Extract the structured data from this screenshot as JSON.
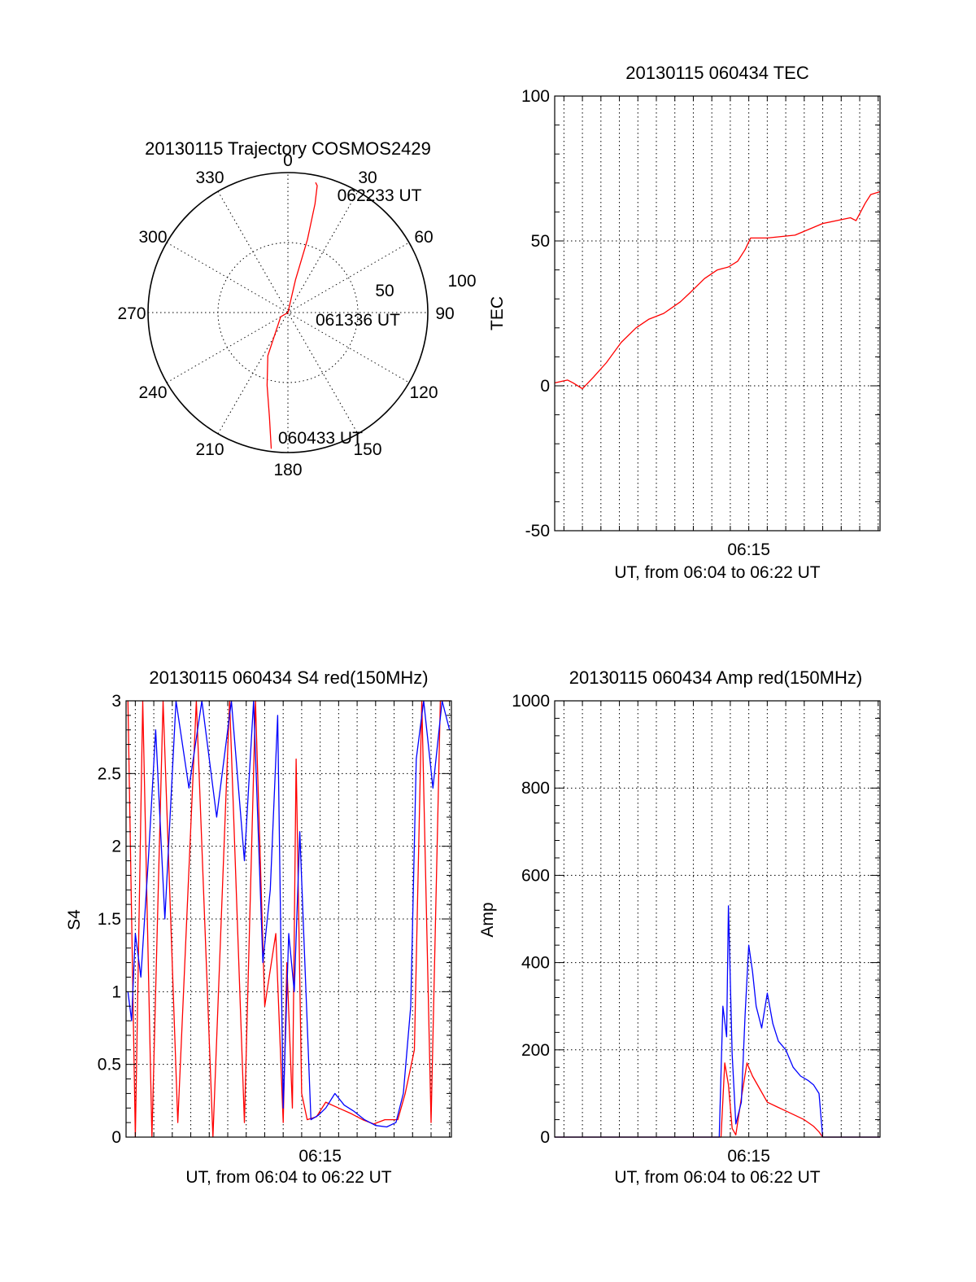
{
  "chart_data": [
    {
      "type": "polar",
      "title": "20130115 Trajectory COSMOS2429",
      "azimuth_labels": [
        "0",
        "30",
        "60",
        "90",
        "120",
        "150",
        "180",
        "210",
        "240",
        "270",
        "300",
        "330"
      ],
      "radius_labels": [
        "50",
        "100"
      ],
      "rlim": [
        0,
        100
      ],
      "trajectory_labels": [
        {
          "text": "062233 UT",
          "az": 22,
          "r": 91
        },
        {
          "text": "061336 UT",
          "az": 0,
          "r": 0
        },
        {
          "text": "060433 UT",
          "az": 180,
          "r": 97
        }
      ],
      "series": [
        {
          "color": "#ff0000",
          "points": [
            [
              187,
              98
            ],
            [
              190,
              76
            ],
            [
              196,
              54
            ],
            [
              205,
              34
            ],
            [
              240,
              6
            ],
            [
              0,
              0
            ],
            [
              13,
              24
            ],
            [
              15,
              54
            ],
            [
              14,
              80
            ],
            [
              13,
              93
            ],
            [
              12,
              95
            ]
          ]
        }
      ]
    },
    {
      "type": "line",
      "title": "20130115 060434 TEC",
      "xlabel": "UT, from 06:04 to 06:22 UT",
      "ylabel": "TEC",
      "xticklabels": [
        {
          "x": 15,
          "label": "06:15"
        }
      ],
      "xlim": [
        4.5,
        22.1
      ],
      "ylim": [
        -50,
        100
      ],
      "yticks": [
        -50,
        0,
        50,
        100
      ],
      "grid": true,
      "series": [
        {
          "color": "#ff0000",
          "x": [
            4.5,
            5.2,
            5.5,
            6.0,
            6.6,
            7.3,
            8.1,
            8.9,
            9.6,
            10.4,
            11.3,
            11.8,
            12.6,
            13.3,
            13.9,
            14.4,
            14.8,
            15.1,
            16.0,
            17.5,
            19.0,
            20.5,
            20.8,
            21.3,
            21.6,
            22.1
          ],
          "y": [
            1,
            2,
            1,
            -1,
            3,
            8,
            15,
            20,
            23,
            25,
            29,
            32,
            37,
            40,
            41,
            43,
            47,
            51,
            51,
            52,
            56,
            58,
            57,
            63,
            66,
            67
          ]
        }
      ]
    },
    {
      "type": "line",
      "title": "20130115 060434 S4 red(150MHz)",
      "xlabel": "UT, from 06:04 to 06:22 UT",
      "ylabel": "S4",
      "xticklabels": [
        {
          "x": 15,
          "label": "06:15"
        }
      ],
      "xlim": [
        4.5,
        22.1
      ],
      "ylim": [
        0,
        3
      ],
      "yticks": [
        0,
        0.5,
        1,
        1.5,
        2,
        2.5,
        3
      ],
      "ytick_labels": [
        "0",
        "0.5",
        "1",
        "1.5",
        "2",
        "2.5",
        "3"
      ],
      "grid": true,
      "series": [
        {
          "color": "#ff0000",
          "x": [
            4.6,
            5.0,
            5.4,
            5.9,
            6.5,
            7.3,
            8.3,
            9.2,
            10.1,
            10.9,
            11.5,
            12.0,
            12.6,
            13.0,
            13.2,
            13.5,
            13.7,
            14.0,
            14.3,
            14.8,
            15.3,
            16.0,
            16.7,
            17.3,
            17.9,
            18.5,
            19.2,
            19.6,
            20.1,
            20.5,
            21.0,
            21.5,
            22.0
          ],
          "y": [
            3,
            0,
            3,
            0,
            3,
            0.1,
            3,
            0,
            3,
            0.1,
            3,
            0.9,
            1.4,
            0.1,
            1.2,
            0.2,
            2.6,
            0.3,
            0.12,
            0.14,
            0.24,
            0.2,
            0.16,
            0.12,
            0.09,
            0.12,
            0.12,
            0.3,
            0.6,
            3,
            0.1,
            3,
            3
          ]
        },
        {
          "color": "#0000ff",
          "x": [
            4.6,
            4.8,
            5.0,
            5.3,
            5.7,
            6.1,
            6.6,
            7.2,
            7.9,
            8.6,
            9.4,
            10.2,
            10.9,
            11.4,
            11.9,
            12.3,
            12.7,
            13.0,
            13.3,
            13.6,
            13.9,
            14.2,
            14.5,
            14.9,
            15.3,
            15.8,
            16.3,
            16.8,
            17.4,
            18.0,
            18.6,
            19.1,
            19.5,
            19.9,
            20.2,
            20.6,
            21.1,
            21.6,
            22.0
          ],
          "y": [
            1.0,
            0.8,
            1.4,
            1.1,
            1.9,
            2.8,
            1.5,
            3,
            2.4,
            3,
            2.2,
            3,
            1.9,
            3,
            1.2,
            1.7,
            2.9,
            0.2,
            1.4,
            1.0,
            2.1,
            1.1,
            0.12,
            0.15,
            0.2,
            0.3,
            0.22,
            0.18,
            0.12,
            0.08,
            0.07,
            0.1,
            0.3,
            0.9,
            2.6,
            3,
            2.4,
            3,
            2.8
          ]
        }
      ]
    },
    {
      "type": "line",
      "title": "20130115 060434 Amp red(150MHz)",
      "xlabel": "UT, from 06:04 to 06:22 UT",
      "ylabel": "Amp",
      "xticklabels": [
        {
          "x": 15,
          "label": "06:15"
        }
      ],
      "xlim": [
        4.5,
        22.1
      ],
      "ylim": [
        0,
        1000
      ],
      "yticks": [
        0,
        200,
        400,
        600,
        800,
        1000
      ],
      "grid": true,
      "series": [
        {
          "color": "#ff0000",
          "x": [
            4.5,
            13.5,
            13.7,
            13.9,
            14.1,
            14.3,
            14.6,
            14.9,
            15.2,
            15.6,
            16.0,
            16.5,
            17.0,
            17.5,
            18.0,
            18.5,
            18.8,
            19.0,
            22.1
          ],
          "y": [
            0,
            0,
            170,
            120,
            20,
            5,
            90,
            170,
            140,
            110,
            80,
            70,
            60,
            50,
            40,
            25,
            12,
            0,
            0
          ]
        },
        {
          "color": "#0000ff",
          "x": [
            4.5,
            13.4,
            13.6,
            13.8,
            13.9,
            14.1,
            14.3,
            14.6,
            14.8,
            15.0,
            15.2,
            15.4,
            15.7,
            16.0,
            16.3,
            16.6,
            17.0,
            17.4,
            17.8,
            18.2,
            18.5,
            18.8,
            19.0,
            22.1
          ],
          "y": [
            0,
            0,
            300,
            230,
            530,
            190,
            30,
            80,
            280,
            440,
            380,
            300,
            250,
            330,
            260,
            220,
            200,
            160,
            140,
            130,
            120,
            100,
            0,
            0
          ]
        }
      ]
    }
  ]
}
